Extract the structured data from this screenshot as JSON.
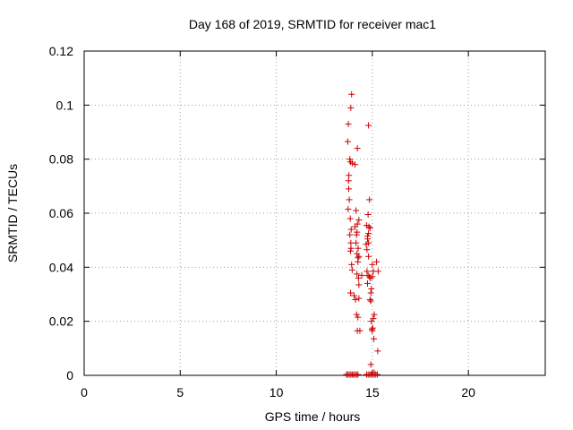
{
  "chart_data": {
    "type": "scatter",
    "title": "Day 168 of 2019, SRMTID for receiver mac1",
    "xlabel": "GPS time / hours",
    "ylabel": "SRMTID / TECUs",
    "xlim": [
      0,
      24
    ],
    "ylim": [
      0,
      0.12
    ],
    "xticks": [
      0,
      5,
      10,
      15,
      20
    ],
    "yticks": [
      0,
      0.02,
      0.04,
      0.06,
      0.08,
      0.1,
      0.12
    ],
    "xtick_labels": [
      "0",
      "5",
      "10",
      "15",
      "20"
    ],
    "ytick_labels": [
      "0",
      "0.02",
      "0.04",
      "0.06",
      "0.08",
      "0.1",
      "0.12"
    ],
    "grid": true,
    "marker": "+",
    "colors": {
      "points": "#cc0000",
      "grid": "#a0a0a0",
      "axes": "#000000"
    },
    "series": [
      {
        "name": "SRMTID",
        "x": [
          13.92,
          13.88,
          13.75,
          13.72,
          13.83,
          13.86,
          13.78,
          13.76,
          13.95,
          13.77,
          13.8,
          13.74,
          13.85,
          13.9,
          13.88,
          13.86,
          13.92,
          13.95,
          13.83,
          13.89,
          13.87,
          14.05,
          14.12,
          14.18,
          14.25,
          14.3,
          14.22,
          14.2,
          14.28,
          14.15,
          14.2,
          14.25,
          14.1,
          14.3,
          14.22,
          14.18,
          14.26,
          14.3,
          14.2,
          14.15,
          14.3,
          14.35,
          14.22,
          14.1,
          14.25,
          14.45,
          14.8,
          14.85,
          14.78,
          14.82,
          14.7,
          14.75,
          14.8,
          14.68,
          14.72,
          14.8,
          14.72,
          14.78,
          14.85,
          14.9,
          14.75,
          14.95,
          14.92,
          15.0,
          15.05,
          15.0,
          14.88,
          14.92,
          15.1,
          15.05,
          14.95,
          15.02,
          14.98,
          15.0,
          15.08,
          15.22,
          15.3,
          15.28,
          15.1,
          15.0,
          14.92,
          14.88,
          14.8,
          14.75
        ],
        "y": [
          0.104,
          0.099,
          0.093,
          0.0865,
          0.08,
          0.079,
          0.074,
          0.072,
          0.0785,
          0.069,
          0.065,
          0.0615,
          0.058,
          0.054,
          0.049,
          0.046,
          0.041,
          0.039,
          0.052,
          0.047,
          0.0305,
          0.0295,
          0.028,
          0.0225,
          0.0215,
          0.0285,
          0.0165,
          0.0375,
          0.036,
          0.049,
          0.045,
          0.042,
          0.055,
          0.0575,
          0.056,
          0.052,
          0.047,
          0.044,
          0.053,
          0.061,
          0.0335,
          0.0165,
          0.084,
          0.078,
          0.0435,
          0.037,
          0.0925,
          0.065,
          0.0595,
          0.055,
          0.0555,
          0.0505,
          0.049,
          0.0485,
          0.0465,
          0.044,
          0.0385,
          0.037,
          0.0365,
          0.036,
          0.034,
          0.032,
          0.0305,
          0.041,
          0.0385,
          0.0365,
          0.028,
          0.0275,
          0.0225,
          0.021,
          0.02,
          0.0175,
          0.017,
          0.0165,
          0.0135,
          0.042,
          0.0385,
          0.009,
          0.001,
          0.001,
          0.004,
          0.0545,
          0.0525,
          0.0515
        ]
      },
      {
        "name": "near-zero",
        "x": [
          13.65,
          13.72,
          13.8,
          13.88,
          13.95,
          14.02,
          14.1,
          14.18,
          14.25,
          14.7,
          14.78,
          14.86,
          14.94,
          15.02,
          15.1,
          15.18,
          15.26
        ],
        "y": [
          0.0003,
          0.0003,
          0.0003,
          0.0003,
          0.0003,
          0.0003,
          0.0003,
          0.0003,
          0.0003,
          0.0003,
          0.0003,
          0.0003,
          0.0003,
          0.0003,
          0.0003,
          0.0003,
          0.0003
        ]
      }
    ]
  }
}
